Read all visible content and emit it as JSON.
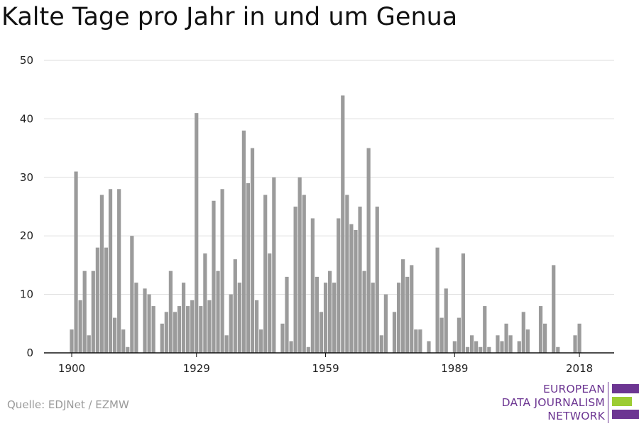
{
  "title": "Kalte Tage pro Jahr in und um Genua",
  "source": "Quelle: EDJNet / EZMW",
  "logo": {
    "lines": [
      "EUROPEAN",
      "DATA JOURNALISM",
      "NETWORK"
    ],
    "colors": {
      "purple": "#6c3592",
      "green": "#9ccc33"
    }
  },
  "colors": {
    "bar": "#9b9b9b",
    "grid": "#dddddd",
    "axis": "#111111"
  },
  "chart_data": {
    "type": "bar",
    "title": "Kalte Tage pro Jahr in und um Genua",
    "xlabel": "",
    "ylabel": "",
    "ylim": [
      0,
      50
    ],
    "yticks": [
      0,
      10,
      20,
      30,
      40,
      50
    ],
    "xticks": [
      1900,
      1929,
      1959,
      1989,
      2018
    ],
    "grid": true,
    "series": [
      {
        "x": [
          1900,
          1901,
          1902,
          1903,
          1904,
          1905,
          1906,
          1907,
          1908,
          1909,
          1910,
          1911,
          1912,
          1913,
          1914,
          1915,
          1916,
          1917,
          1918,
          1919,
          1920,
          1921,
          1922,
          1923,
          1924,
          1925,
          1926,
          1927,
          1928,
          1929,
          1930,
          1931,
          1932,
          1933,
          1934,
          1935,
          1936,
          1937,
          1938,
          1939,
          1940,
          1941,
          1942,
          1943,
          1944,
          1945,
          1946,
          1947,
          1948,
          1949,
          1950,
          1951,
          1952,
          1953,
          1954,
          1955,
          1956,
          1957,
          1958,
          1959,
          1960,
          1961,
          1962,
          1963,
          1964,
          1965,
          1966,
          1967,
          1968,
          1969,
          1970,
          1971,
          1972,
          1973,
          1974,
          1975,
          1976,
          1977,
          1978,
          1979,
          1980,
          1981,
          1982,
          1983,
          1984,
          1985,
          1986,
          1987,
          1988,
          1989,
          1990,
          1991,
          1992,
          1993,
          1994,
          1995,
          1996,
          1997,
          1998,
          1999,
          2000,
          2001,
          2002,
          2003,
          2004,
          2005,
          2006,
          2007,
          2008,
          2009,
          2010,
          2011,
          2012,
          2013,
          2014,
          2015,
          2016,
          2017,
          2018,
          2019
        ],
        "values": [
          4,
          31,
          9,
          14,
          3,
          14,
          18,
          27,
          18,
          28,
          6,
          28,
          4,
          1,
          20,
          12,
          0,
          11,
          10,
          8,
          0,
          5,
          7,
          14,
          7,
          8,
          12,
          8,
          9,
          41,
          8,
          17,
          9,
          26,
          14,
          28,
          3,
          10,
          16,
          12,
          38,
          29,
          35,
          9,
          4,
          27,
          17,
          30,
          0,
          5,
          13,
          2,
          25,
          30,
          27,
          1,
          23,
          13,
          7,
          12,
          14,
          12,
          23,
          44,
          27,
          22,
          21,
          25,
          14,
          35,
          12,
          25,
          3,
          10,
          0,
          7,
          12,
          16,
          13,
          15,
          4,
          4,
          0,
          2,
          0,
          18,
          6,
          11,
          0,
          2,
          6,
          17,
          1,
          3,
          2,
          1,
          8,
          1,
          0,
          3,
          2,
          5,
          3,
          0,
          2,
          7,
          4,
          0,
          0,
          8,
          5,
          0,
          15,
          1,
          0,
          0,
          0,
          3,
          5,
          0
        ]
      }
    ]
  }
}
